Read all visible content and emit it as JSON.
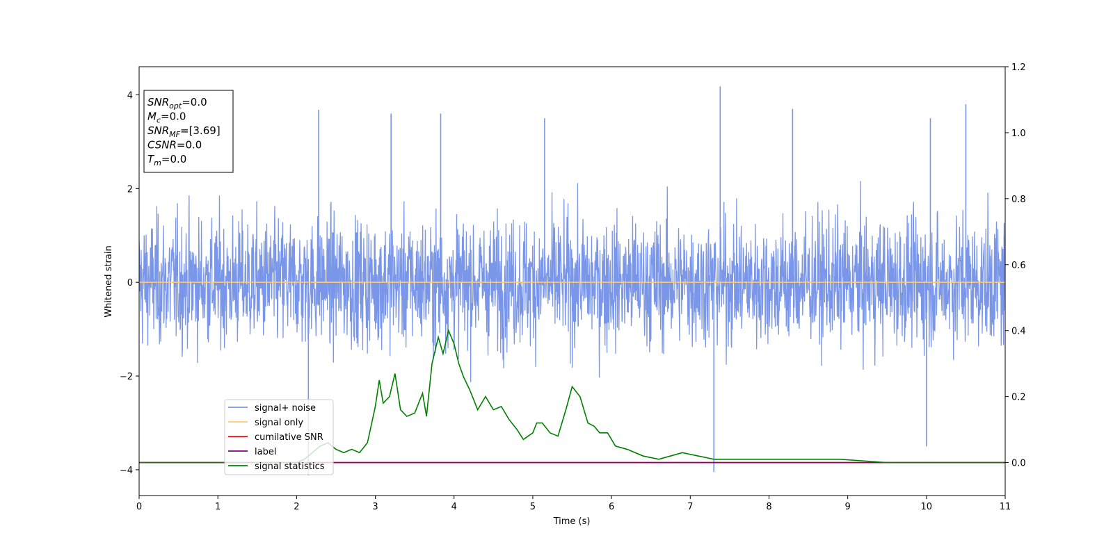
{
  "chart_data": {
    "type": "line",
    "xlabel": "Time (s)",
    "ylabel_left": "Whitened strain",
    "ylabel_right": "",
    "xlim": [
      0,
      11
    ],
    "ylim_left": [
      -4.55,
      4.6
    ],
    "ylim_right": [
      -0.1,
      1.2
    ],
    "x_ticks": [
      0,
      1,
      2,
      3,
      4,
      5,
      6,
      7,
      8,
      9,
      10,
      11
    ],
    "y_ticks_left": [
      -4,
      -2,
      0,
      2,
      4
    ],
    "y_ticks_right": [
      0.0,
      0.2,
      0.4,
      0.6,
      0.8,
      1.0,
      1.2
    ],
    "grid": false,
    "legend_position": "lower-left",
    "info_box": [
      {
        "base": "SNR",
        "sub": "opt",
        "value": "=0.0"
      },
      {
        "base": "M",
        "sub": "c",
        "value": "=0.0"
      },
      {
        "base": "SNR",
        "sub": "MF",
        "value": "=[3.69]"
      },
      {
        "base": "CSNR",
        "sub": "",
        "value": "=0.0"
      },
      {
        "base": "T",
        "sub": "m",
        "value": "=0.0"
      }
    ],
    "series": [
      {
        "name": "signal+ noise",
        "axis": "left",
        "color": "#7a96e8",
        "kind": "noise",
        "duration_s": 11,
        "approx_envelope": [
          -2.6,
          2.6
        ],
        "peak_max": 4.18,
        "peak_min": -4.12,
        "notable_peaks": [
          [
            2.28,
            3.68
          ],
          [
            3.2,
            3.6
          ],
          [
            3.83,
            3.6
          ],
          [
            5.15,
            3.5
          ],
          [
            7.38,
            4.18
          ],
          [
            8.3,
            3.7
          ],
          [
            10.05,
            3.5
          ],
          [
            10.5,
            3.8
          ],
          [
            2.15,
            -4.12
          ],
          [
            7.3,
            -4.05
          ],
          [
            10.0,
            -3.5
          ]
        ]
      },
      {
        "name": "signal only",
        "axis": "left",
        "color": "#ffc870",
        "x": [
          0,
          11
        ],
        "y": [
          0,
          0
        ]
      },
      {
        "name": "cumilative SNR",
        "axis": "right",
        "color": "#ff0000",
        "x": [
          0,
          11
        ],
        "y": [
          0,
          0
        ]
      },
      {
        "name": "label",
        "axis": "right",
        "color": "#800080",
        "x": [
          0,
          11
        ],
        "y": [
          0,
          0
        ]
      },
      {
        "name": "signal statistics",
        "axis": "right",
        "color": "#008000",
        "x": [
          0,
          0.5,
          1.0,
          1.5,
          2.0,
          2.1,
          2.2,
          2.3,
          2.4,
          2.5,
          2.6,
          2.7,
          2.8,
          2.9,
          3.0,
          3.05,
          3.1,
          3.18,
          3.25,
          3.32,
          3.4,
          3.5,
          3.6,
          3.65,
          3.72,
          3.8,
          3.86,
          3.93,
          4.0,
          4.06,
          4.12,
          4.2,
          4.3,
          4.4,
          4.5,
          4.6,
          4.7,
          4.8,
          4.88,
          5.0,
          5.05,
          5.12,
          5.22,
          5.32,
          5.42,
          5.5,
          5.6,
          5.7,
          5.78,
          5.85,
          5.95,
          6.05,
          6.2,
          6.4,
          6.6,
          6.75,
          6.9,
          7.1,
          7.3,
          7.5,
          7.7,
          7.9,
          8.2,
          8.6,
          8.9,
          9.5,
          10.5,
          11.0
        ],
        "y": [
          0.0,
          0.0,
          0.0,
          0.0,
          0.0,
          0.01,
          0.03,
          0.05,
          0.06,
          0.04,
          0.03,
          0.04,
          0.03,
          0.06,
          0.17,
          0.25,
          0.18,
          0.2,
          0.27,
          0.16,
          0.14,
          0.15,
          0.21,
          0.14,
          0.3,
          0.38,
          0.33,
          0.4,
          0.36,
          0.3,
          0.26,
          0.22,
          0.16,
          0.2,
          0.16,
          0.17,
          0.13,
          0.1,
          0.07,
          0.09,
          0.12,
          0.12,
          0.09,
          0.08,
          0.16,
          0.23,
          0.2,
          0.12,
          0.11,
          0.09,
          0.09,
          0.05,
          0.04,
          0.02,
          0.01,
          0.02,
          0.03,
          0.02,
          0.01,
          0.01,
          0.01,
          0.01,
          0.01,
          0.01,
          0.01,
          0.0,
          0.0,
          0.0
        ]
      }
    ]
  }
}
